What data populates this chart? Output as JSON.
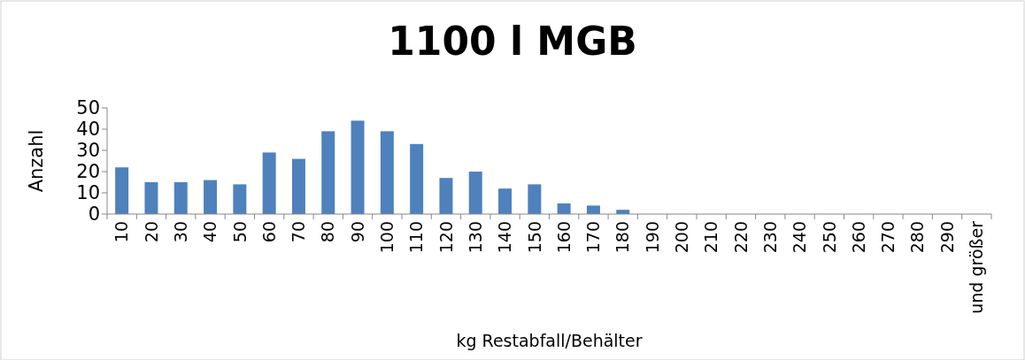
{
  "chart_data": {
    "type": "bar",
    "title": "1100 l MGB",
    "xlabel": "kg Restabfall/Behälter",
    "ylabel": "Anzahl",
    "categories": [
      "10",
      "20",
      "30",
      "40",
      "50",
      "60",
      "70",
      "80",
      "90",
      "100",
      "110",
      "120",
      "130",
      "140",
      "150",
      "160",
      "170",
      "180",
      "190",
      "200",
      "210",
      "220",
      "230",
      "240",
      "250",
      "260",
      "270",
      "280",
      "290",
      "und größer"
    ],
    "values": [
      22,
      15,
      15,
      16,
      14,
      29,
      26,
      39,
      44,
      39,
      33,
      17,
      20,
      12,
      14,
      5,
      4,
      2,
      0,
      0,
      0,
      0,
      0,
      0,
      0,
      0,
      0,
      0,
      0,
      0
    ],
    "color": "#4f81bd",
    "ylim": [
      0,
      50
    ],
    "yticks": [
      0,
      10,
      20,
      30,
      40,
      50
    ],
    "grid": false
  }
}
